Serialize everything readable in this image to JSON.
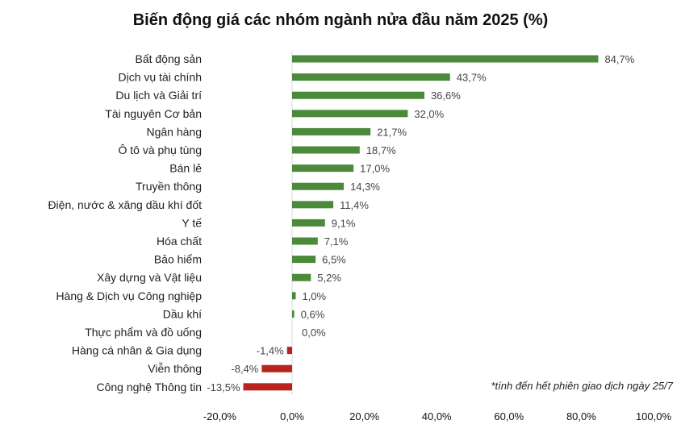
{
  "chart_data": {
    "type": "bar",
    "orientation": "horizontal",
    "title": "Biến động giá các nhóm ngành nửa đầu năm 2025 (%)",
    "note": "*tính đến hết phiên giao dịch ngày 25/7",
    "categories": [
      "Bất động sản",
      "Dịch vụ tài chính",
      "Du lịch và Giải trí",
      "Tài nguyên Cơ bản",
      "Ngân hàng",
      "Ô tô và phụ tùng",
      "Bán lẻ",
      "Truyền thông",
      "Điện, nước & xăng dầu khí đốt",
      "Y tế",
      "Hóa chất",
      "Bảo hiểm",
      "Xây dựng và Vật liệu",
      "Hàng & Dịch vụ Công nghiệp",
      "Dầu khí",
      "Thực phẩm và đồ uống",
      "Hàng cá nhân & Gia dụng",
      "Viễn thông",
      "Công nghệ Thông tin"
    ],
    "values": [
      84.7,
      43.7,
      36.6,
      32.0,
      21.7,
      18.7,
      17.0,
      14.3,
      11.4,
      9.1,
      7.1,
      6.5,
      5.2,
      1.0,
      0.6,
      0.0,
      -1.4,
      -8.4,
      -13.5
    ],
    "data_labels": [
      "84,7%",
      "43,7%",
      "36,6%",
      "32,0%",
      "21,7%",
      "18,7%",
      "17,0%",
      "14,3%",
      "11,4%",
      "9,1%",
      "7,1%",
      "6,5%",
      "5,2%",
      "1,0%",
      "0,6%",
      "0,0%",
      "-1,4%",
      "-8,4%",
      "-13,5%"
    ],
    "xlim": [
      -20,
      100
    ],
    "xticks": [
      -20,
      0,
      20,
      40,
      60,
      80,
      100
    ],
    "xtick_labels": [
      "-20,0%",
      "0,0%",
      "20,0%",
      "40,0%",
      "60,0%",
      "80,0%",
      "100,0%"
    ],
    "grid": false,
    "legend": "none",
    "colors": {
      "positive": "#4a8a3a",
      "negative": "#b8241d",
      "axis": "#d9d9d9"
    }
  }
}
